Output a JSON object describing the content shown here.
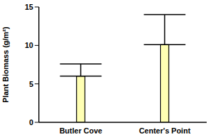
{
  "chart_data": {
    "type": "bar",
    "ylabel": "Plant Biomass (g/m²)",
    "categories": [
      "Butler Cove",
      "Center's Point"
    ],
    "values": [
      6,
      10.1
    ],
    "errors": [
      1.6,
      3.9
    ],
    "color": "#ffffb3",
    "ylim": [
      0,
      15
    ],
    "yticks": [
      0,
      5,
      10,
      15
    ],
    "grid": false
  }
}
